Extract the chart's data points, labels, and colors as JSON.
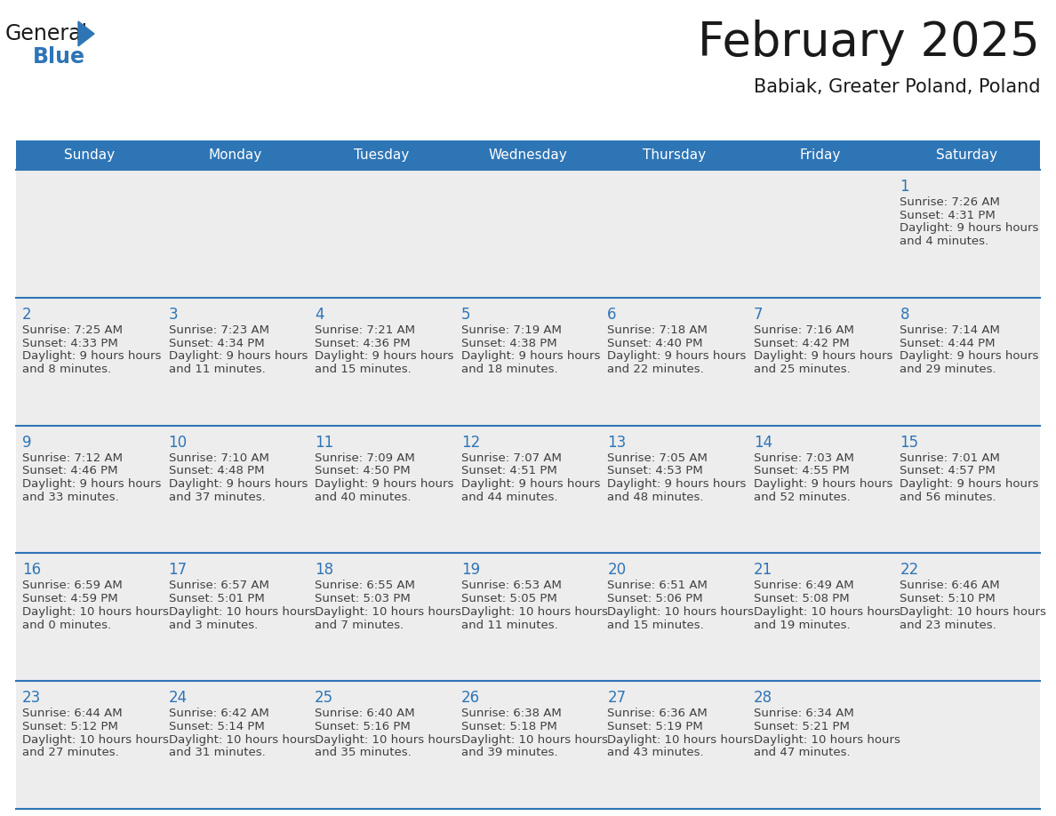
{
  "title": "February 2025",
  "subtitle": "Babiak, Greater Poland, Poland",
  "header_bg": "#2E75B6",
  "header_text_color": "#FFFFFF",
  "cell_bg": "#EDEDED",
  "day_strip_bg": "#EDEDED",
  "day_num_color": "#2E75B6",
  "text_color": "#404040",
  "line_color": "#2E75B6",
  "days_of_week": [
    "Sunday",
    "Monday",
    "Tuesday",
    "Wednesday",
    "Thursday",
    "Friday",
    "Saturday"
  ],
  "calendar_data": [
    [
      null,
      null,
      null,
      null,
      null,
      null,
      {
        "day": 1,
        "sunrise": "7:26 AM",
        "sunset": "4:31 PM",
        "daylight": "9 hours and 4 minutes."
      }
    ],
    [
      {
        "day": 2,
        "sunrise": "7:25 AM",
        "sunset": "4:33 PM",
        "daylight": "9 hours and 8 minutes."
      },
      {
        "day": 3,
        "sunrise": "7:23 AM",
        "sunset": "4:34 PM",
        "daylight": "9 hours and 11 minutes."
      },
      {
        "day": 4,
        "sunrise": "7:21 AM",
        "sunset": "4:36 PM",
        "daylight": "9 hours and 15 minutes."
      },
      {
        "day": 5,
        "sunrise": "7:19 AM",
        "sunset": "4:38 PM",
        "daylight": "9 hours and 18 minutes."
      },
      {
        "day": 6,
        "sunrise": "7:18 AM",
        "sunset": "4:40 PM",
        "daylight": "9 hours and 22 minutes."
      },
      {
        "day": 7,
        "sunrise": "7:16 AM",
        "sunset": "4:42 PM",
        "daylight": "9 hours and 25 minutes."
      },
      {
        "day": 8,
        "sunrise": "7:14 AM",
        "sunset": "4:44 PM",
        "daylight": "9 hours and 29 minutes."
      }
    ],
    [
      {
        "day": 9,
        "sunrise": "7:12 AM",
        "sunset": "4:46 PM",
        "daylight": "9 hours and 33 minutes."
      },
      {
        "day": 10,
        "sunrise": "7:10 AM",
        "sunset": "4:48 PM",
        "daylight": "9 hours and 37 minutes."
      },
      {
        "day": 11,
        "sunrise": "7:09 AM",
        "sunset": "4:50 PM",
        "daylight": "9 hours and 40 minutes."
      },
      {
        "day": 12,
        "sunrise": "7:07 AM",
        "sunset": "4:51 PM",
        "daylight": "9 hours and 44 minutes."
      },
      {
        "day": 13,
        "sunrise": "7:05 AM",
        "sunset": "4:53 PM",
        "daylight": "9 hours and 48 minutes."
      },
      {
        "day": 14,
        "sunrise": "7:03 AM",
        "sunset": "4:55 PM",
        "daylight": "9 hours and 52 minutes."
      },
      {
        "day": 15,
        "sunrise": "7:01 AM",
        "sunset": "4:57 PM",
        "daylight": "9 hours and 56 minutes."
      }
    ],
    [
      {
        "day": 16,
        "sunrise": "6:59 AM",
        "sunset": "4:59 PM",
        "daylight": "10 hours and 0 minutes."
      },
      {
        "day": 17,
        "sunrise": "6:57 AM",
        "sunset": "5:01 PM",
        "daylight": "10 hours and 3 minutes."
      },
      {
        "day": 18,
        "sunrise": "6:55 AM",
        "sunset": "5:03 PM",
        "daylight": "10 hours and 7 minutes."
      },
      {
        "day": 19,
        "sunrise": "6:53 AM",
        "sunset": "5:05 PM",
        "daylight": "10 hours and 11 minutes."
      },
      {
        "day": 20,
        "sunrise": "6:51 AM",
        "sunset": "5:06 PM",
        "daylight": "10 hours and 15 minutes."
      },
      {
        "day": 21,
        "sunrise": "6:49 AM",
        "sunset": "5:08 PM",
        "daylight": "10 hours and 19 minutes."
      },
      {
        "day": 22,
        "sunrise": "6:46 AM",
        "sunset": "5:10 PM",
        "daylight": "10 hours and 23 minutes."
      }
    ],
    [
      {
        "day": 23,
        "sunrise": "6:44 AM",
        "sunset": "5:12 PM",
        "daylight": "10 hours and 27 minutes."
      },
      {
        "day": 24,
        "sunrise": "6:42 AM",
        "sunset": "5:14 PM",
        "daylight": "10 hours and 31 minutes."
      },
      {
        "day": 25,
        "sunrise": "6:40 AM",
        "sunset": "5:16 PM",
        "daylight": "10 hours and 35 minutes."
      },
      {
        "day": 26,
        "sunrise": "6:38 AM",
        "sunset": "5:18 PM",
        "daylight": "10 hours and 39 minutes."
      },
      {
        "day": 27,
        "sunrise": "6:36 AM",
        "sunset": "5:19 PM",
        "daylight": "10 hours and 43 minutes."
      },
      {
        "day": 28,
        "sunrise": "6:34 AM",
        "sunset": "5:21 PM",
        "daylight": "10 hours and 47 minutes."
      },
      null
    ]
  ],
  "logo_general_color": "#1a1a1a",
  "logo_blue_color": "#2E75B6",
  "logo_triangle_color": "#2E75B6"
}
